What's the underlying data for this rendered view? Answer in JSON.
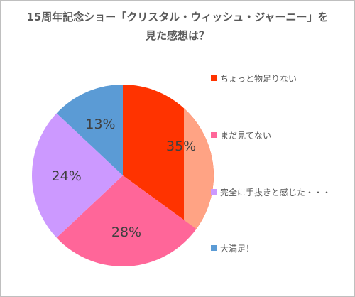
{
  "title": {
    "line1": "15周年記念ショー「クリスタル・ウィッシュ・ジャーニー」を",
    "line2": "見た感想は？"
  },
  "chart_data": {
    "type": "pie",
    "title": "15周年記念ショー「クリスタル・ウィッシュ・ジャーニー」を見た感想は？",
    "categories": [
      "ちょっと物足りない",
      "まだ見てない",
      "完全に手抜きと感じた・・・",
      "大満足！"
    ],
    "values": [
      35,
      28,
      24,
      13
    ],
    "labels": [
      "35%",
      "28%",
      "24%",
      "13%"
    ],
    "colors": [
      "#ff3300",
      "#ff6699",
      "#cc99ff",
      "#5b9bd5"
    ],
    "legend_position": "right",
    "extra_slice_overlay": {
      "color": "#ffa384"
    }
  }
}
